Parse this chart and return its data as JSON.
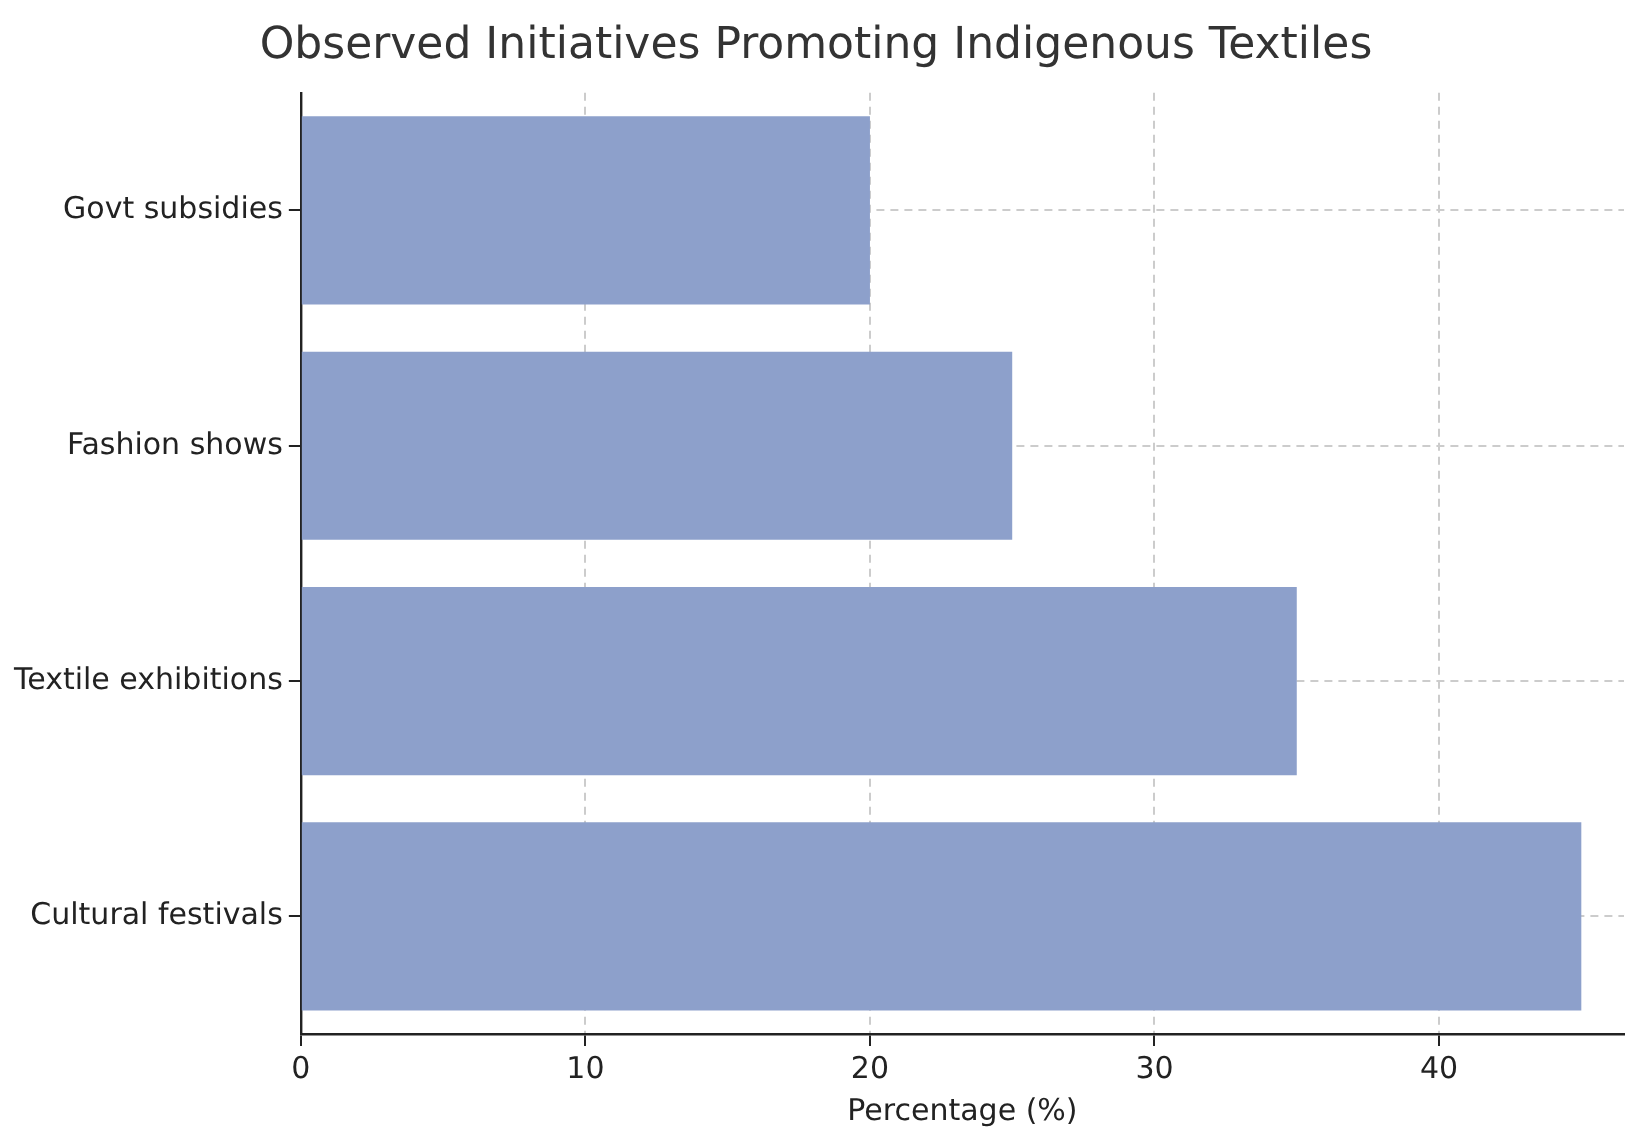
{
  "chart_data": {
    "type": "bar",
    "orientation": "horizontal",
    "title": "Observed Initiatives Promoting Indigenous Textiles",
    "xlabel": "Percentage (%)",
    "categories": [
      "Govt subsidies",
      "Fashion shows",
      "Textile exhibitions",
      "Cultural festivals"
    ],
    "values": [
      20,
      25,
      35,
      45
    ],
    "color": "#8da0cb",
    "xlim": [
      0,
      46.5
    ],
    "xticks": [
      0,
      10,
      20,
      30,
      40
    ],
    "grid": true
  }
}
